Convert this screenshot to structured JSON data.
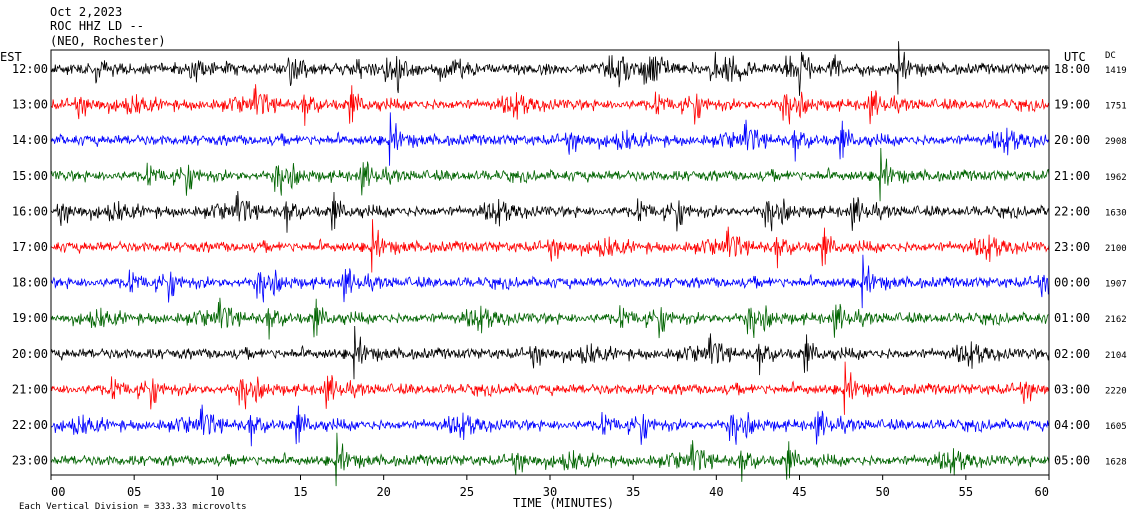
{
  "header": {
    "date": "Oct 2,2023",
    "station": "ROC HHZ LD --",
    "location": "(NEO, Rochester)"
  },
  "left_axis": {
    "title": "EST",
    "labels": [
      "12:00",
      "13:00",
      "14:00",
      "15:00",
      "16:00",
      "17:00",
      "18:00",
      "19:00",
      "20:00",
      "21:00",
      "22:00",
      "23:00"
    ]
  },
  "right_axis": {
    "title": "UTC",
    "labels": [
      "18:00",
      "19:00",
      "20:00",
      "21:00",
      "22:00",
      "23:00",
      "00:00",
      "01:00",
      "02:00",
      "03:00",
      "04:00",
      "05:00"
    ]
  },
  "dc": {
    "title": "DC",
    "values": [
      "1419",
      "1751",
      "2908",
      "1962",
      "1630",
      "2100",
      "1907",
      "2162",
      "2104",
      "2220",
      "1605",
      "1628"
    ]
  },
  "footer": {
    "scale_note": "Each Vertical Division = 333.33 microvolts"
  },
  "chart_data": {
    "type": "line",
    "xlabel": "TIME (MINUTES)",
    "xlim": [
      0,
      60
    ],
    "x_ticks": [
      "00",
      "05",
      "10",
      "15",
      "20",
      "25",
      "30",
      "35",
      "40",
      "45",
      "50",
      "55",
      "60"
    ],
    "rows": 12,
    "trace_colors": [
      "#000000",
      "#ff0000",
      "#0000ff",
      "#006400"
    ],
    "series": [
      {
        "est": "12:00",
        "color": "#000000"
      },
      {
        "est": "13:00",
        "color": "#ff0000"
      },
      {
        "est": "14:00",
        "color": "#0000ff"
      },
      {
        "est": "15:00",
        "color": "#006400"
      },
      {
        "est": "16:00",
        "color": "#000000"
      },
      {
        "est": "17:00",
        "color": "#ff0000"
      },
      {
        "est": "18:00",
        "color": "#0000ff"
      },
      {
        "est": "19:00",
        "color": "#006400"
      },
      {
        "est": "20:00",
        "color": "#000000"
      },
      {
        "est": "21:00",
        "color": "#ff0000"
      },
      {
        "est": "22:00",
        "color": "#0000ff"
      },
      {
        "est": "23:00",
        "color": "#006400"
      }
    ]
  }
}
